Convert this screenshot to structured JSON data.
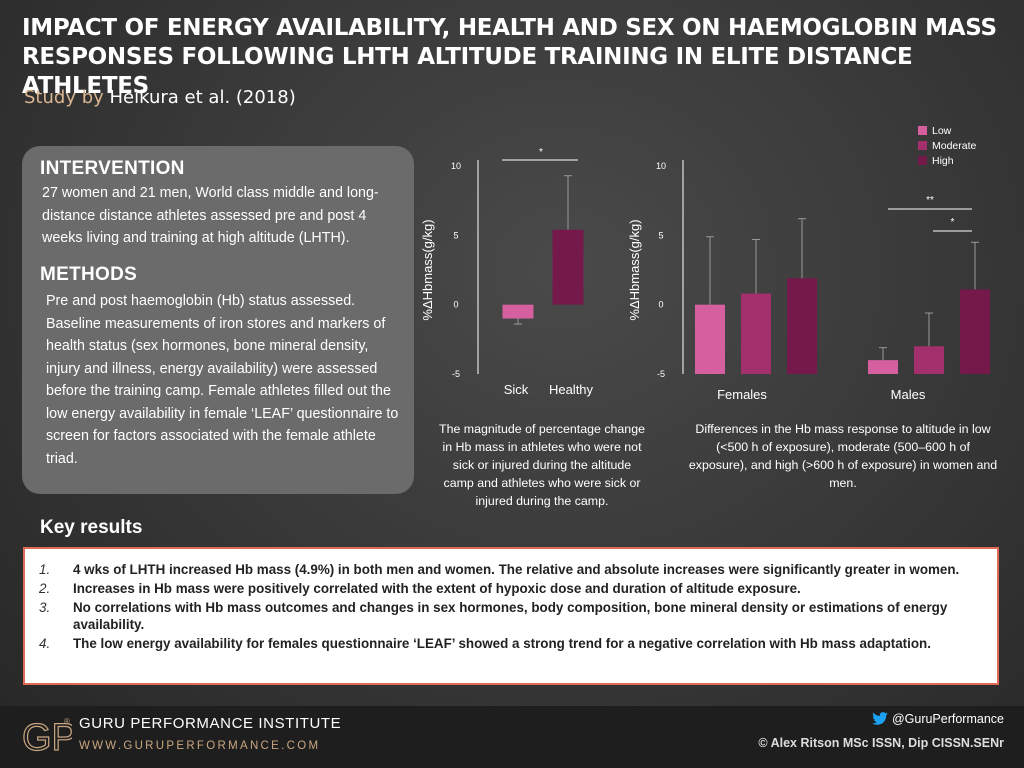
{
  "header": {
    "title": "IMPACT OF ENERGY AVAILABILITY, HEALTH AND SEX ON HAEMOGLOBIN MASS RESPONSES FOLLOWING LHTH ALTITUDE TRAINING IN ELITE DISTANCE ATHLETES",
    "study_prefix": "Study by",
    "study_author": "Heikura et al. (2018)"
  },
  "panel": {
    "intervention_heading": "INTERVENTION",
    "intervention_text": "27 women and 21 men, World class middle and long-distance distance athletes assessed pre and post 4 weeks living and training at high altitude (LHTH).",
    "methods_heading": "METHODS",
    "methods_text": "Pre and post haemoglobin (Hb) status assessed. Baseline measurements of iron stores and markers of health status (sex hormones, bone mineral density, injury and illness, energy availability) were assessed before the training camp. Female athletes filled out the low energy availability in female ‘LEAF’ questionnaire to screen for factors associated with the female athlete triad."
  },
  "chart_data": [
    {
      "type": "bar",
      "ylabel": "%ΔHbmass(g/kg)",
      "ylim": [
        -5,
        10
      ],
      "yticks": [
        "10",
        "5",
        "0",
        "-5"
      ],
      "categories": [
        "Sick",
        "Healthy"
      ],
      "values": [
        -1.0,
        5.4
      ],
      "errors": [
        0.4,
        3.9
      ],
      "colors": [
        "#d65fa0",
        "#75194a"
      ],
      "significance": [
        {
          "from": 0,
          "to": 1,
          "label": "*"
        }
      ],
      "caption": "The magnitude of percentage change in Hb mass in athletes who were not sick or injured during the altitude camp and athletes who were sick or injured during the camp."
    },
    {
      "type": "bar",
      "ylabel": "%ΔHbmass(g/kg)",
      "ylim": [
        -5,
        10
      ],
      "yticks": [
        "10",
        "5",
        "0",
        "-5"
      ],
      "categories": [
        "Females",
        "Males"
      ],
      "series": [
        {
          "name": "Low",
          "color": "#d65fa0",
          "values": [
            0.0,
            -4.0
          ],
          "errors": [
            4.9,
            0.9
          ]
        },
        {
          "name": "Moderate",
          "color": "#a3306c",
          "values": [
            0.8,
            -3.0
          ],
          "errors": [
            3.9,
            2.4
          ]
        },
        {
          "name": "High",
          "color": "#75194a",
          "values": [
            1.9,
            1.1
          ],
          "errors": [
            4.3,
            3.4
          ]
        }
      ],
      "legend_position": "top",
      "significance": [
        {
          "group": 1,
          "from": 0,
          "to": 2,
          "label": "**"
        },
        {
          "group": 1,
          "from": 1,
          "to": 2,
          "label": "*"
        }
      ],
      "caption": "Differences in the Hb mass response to altitude in low (<500 h of exposure), moderate (500–600 h of exposure), and high (>600 h of exposure) in women and men."
    }
  ],
  "key_results": {
    "heading": "Key results",
    "items": [
      {
        "num": "1.",
        "text": "4 wks of LHTH increased Hb mass (4.9%) in both men and women. The relative and absolute increases were significantly greater in women."
      },
      {
        "num": "2.",
        "text": "Increases in Hb mass were positively correlated with the extent of hypoxic dose and duration of altitude exposure."
      },
      {
        "num": "3.",
        "text": "No correlations with Hb mass outcomes and changes in sex hormones, body composition, bone mineral density or estimations of energy availability."
      },
      {
        "num": "4.",
        "text": "The low energy availability for females questionnaire ‘LEAF’ showed a strong trend for a negative correlation with Hb mass adaptation."
      }
    ]
  },
  "footer": {
    "org_name": "GURU PERFORMANCE INSTITUTE",
    "url": "WWW.GURUPERFORMANCE.COM",
    "twitter_handle": "@GuruPerformance",
    "copyright": "© Alex Ritson MSc ISSN, Dip CISSN.SENr",
    "logo_text": "GP",
    "twitter_color": "#1da1f2"
  }
}
